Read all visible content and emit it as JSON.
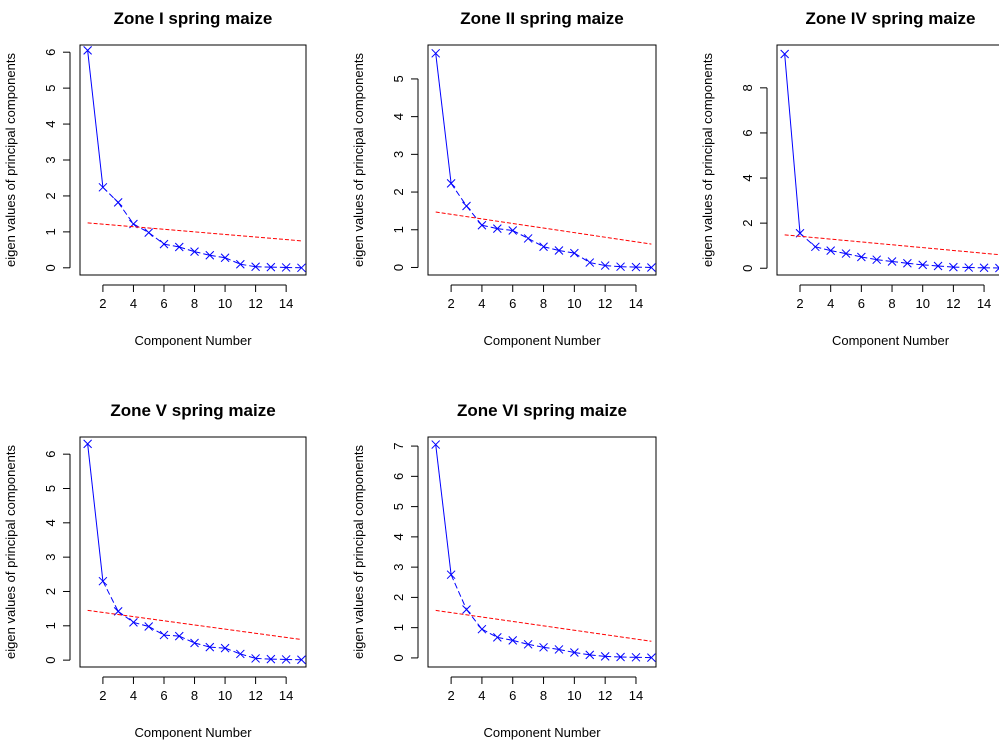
{
  "chart_data": [
    {
      "type": "scatter",
      "title": "Zone I spring maize",
      "xlabel": "Component Number",
      "ylabel": "eigen values of principal components",
      "xlim": [
        0.5,
        15.3
      ],
      "ylim": [
        -0.2,
        6.2
      ],
      "xticks": [
        2,
        4,
        6,
        8,
        10,
        12,
        14
      ],
      "yticks": [
        0,
        1,
        2,
        3,
        4,
        5,
        6
      ],
      "series": [
        {
          "type": "line+points",
          "color": "#0000ff",
          "marker": "x",
          "line": "solid-then-dashed",
          "x": [
            1,
            2,
            3,
            4,
            5,
            6,
            7,
            8,
            9,
            10,
            11,
            12,
            13,
            14,
            15
          ],
          "y": [
            6.05,
            2.24,
            1.82,
            1.22,
            0.98,
            0.66,
            0.58,
            0.45,
            0.35,
            0.28,
            0.1,
            0.03,
            0.02,
            0.01,
            0.0
          ]
        },
        {
          "type": "line",
          "color": "#ff0000",
          "line": "dashed",
          "x": [
            1,
            15
          ],
          "y": [
            1.25,
            0.75
          ]
        }
      ]
    },
    {
      "type": "scatter",
      "title": "Zone II spring maize",
      "xlabel": "Component Number",
      "ylabel": "eigen values of principal components",
      "xlim": [
        0.5,
        15.3
      ],
      "ylim": [
        -0.2,
        5.9
      ],
      "xticks": [
        2,
        4,
        6,
        8,
        10,
        12,
        14
      ],
      "yticks": [
        0,
        1,
        2,
        3,
        4,
        5
      ],
      "series": [
        {
          "type": "line+points",
          "color": "#0000ff",
          "marker": "x",
          "line": "solid-then-dashed",
          "x": [
            1,
            2,
            3,
            4,
            5,
            6,
            7,
            8,
            9,
            10,
            11,
            12,
            13,
            14,
            15
          ],
          "y": [
            5.68,
            2.23,
            1.63,
            1.12,
            1.03,
            0.98,
            0.77,
            0.55,
            0.45,
            0.38,
            0.13,
            0.05,
            0.02,
            0.01,
            0.0
          ]
        },
        {
          "type": "line",
          "color": "#ff0000",
          "line": "dashed",
          "x": [
            1,
            15
          ],
          "y": [
            1.47,
            0.62
          ]
        }
      ]
    },
    {
      "type": "scatter",
      "title": "Zone IV spring maize",
      "xlabel": "Component Number",
      "ylabel": "eigen values of principal components",
      "xlim": [
        0.5,
        15.3
      ],
      "ylim": [
        -0.3,
        9.9
      ],
      "xticks": [
        2,
        4,
        6,
        8,
        10,
        12,
        14
      ],
      "yticks": [
        0,
        2,
        4,
        6,
        8
      ],
      "series": [
        {
          "type": "line+points",
          "color": "#0000ff",
          "marker": "x",
          "line": "solid-then-dashed",
          "x": [
            1,
            2,
            3,
            4,
            5,
            6,
            7,
            8,
            9,
            10,
            11,
            12,
            13,
            14,
            15
          ],
          "y": [
            9.5,
            1.55,
            0.95,
            0.78,
            0.65,
            0.5,
            0.38,
            0.3,
            0.22,
            0.15,
            0.1,
            0.05,
            0.03,
            0.02,
            0.01
          ]
        },
        {
          "type": "line",
          "color": "#ff0000",
          "line": "dashed",
          "x": [
            1,
            15
          ],
          "y": [
            1.48,
            0.6
          ]
        }
      ]
    },
    {
      "type": "scatter",
      "title": "Zone V spring maize",
      "xlabel": "Component Number",
      "ylabel": "eigen values of principal components",
      "xlim": [
        0.5,
        15.3
      ],
      "ylim": [
        -0.2,
        6.5
      ],
      "xticks": [
        2,
        4,
        6,
        8,
        10,
        12,
        14
      ],
      "yticks": [
        0,
        1,
        2,
        3,
        4,
        5,
        6
      ],
      "series": [
        {
          "type": "line+points",
          "color": "#0000ff",
          "marker": "x",
          "line": "solid-then-dashed",
          "x": [
            1,
            2,
            3,
            4,
            5,
            6,
            7,
            8,
            9,
            10,
            11,
            12,
            13,
            14,
            15
          ],
          "y": [
            6.3,
            2.3,
            1.42,
            1.1,
            0.98,
            0.73,
            0.7,
            0.5,
            0.38,
            0.35,
            0.18,
            0.05,
            0.03,
            0.02,
            0.01
          ]
        },
        {
          "type": "line",
          "color": "#ff0000",
          "line": "dashed",
          "x": [
            1,
            15
          ],
          "y": [
            1.45,
            0.6
          ]
        }
      ]
    },
    {
      "type": "scatter",
      "title": "Zone VI spring maize",
      "xlabel": "Component Number",
      "ylabel": "eigen values of principal components",
      "xlim": [
        0.5,
        15.3
      ],
      "ylim": [
        -0.3,
        7.3
      ],
      "xticks": [
        2,
        4,
        6,
        8,
        10,
        12,
        14
      ],
      "yticks": [
        0,
        1,
        2,
        3,
        4,
        5,
        6,
        7
      ],
      "series": [
        {
          "type": "line+points",
          "color": "#0000ff",
          "marker": "x",
          "line": "solid-then-dashed",
          "x": [
            1,
            2,
            3,
            4,
            5,
            6,
            7,
            8,
            9,
            10,
            11,
            12,
            13,
            14,
            15
          ],
          "y": [
            7.05,
            2.75,
            1.6,
            0.95,
            0.68,
            0.58,
            0.45,
            0.35,
            0.28,
            0.18,
            0.1,
            0.05,
            0.03,
            0.02,
            0.01
          ]
        },
        {
          "type": "line",
          "color": "#ff0000",
          "line": "dashed",
          "x": [
            1,
            15
          ],
          "y": [
            1.57,
            0.55
          ]
        }
      ]
    }
  ]
}
